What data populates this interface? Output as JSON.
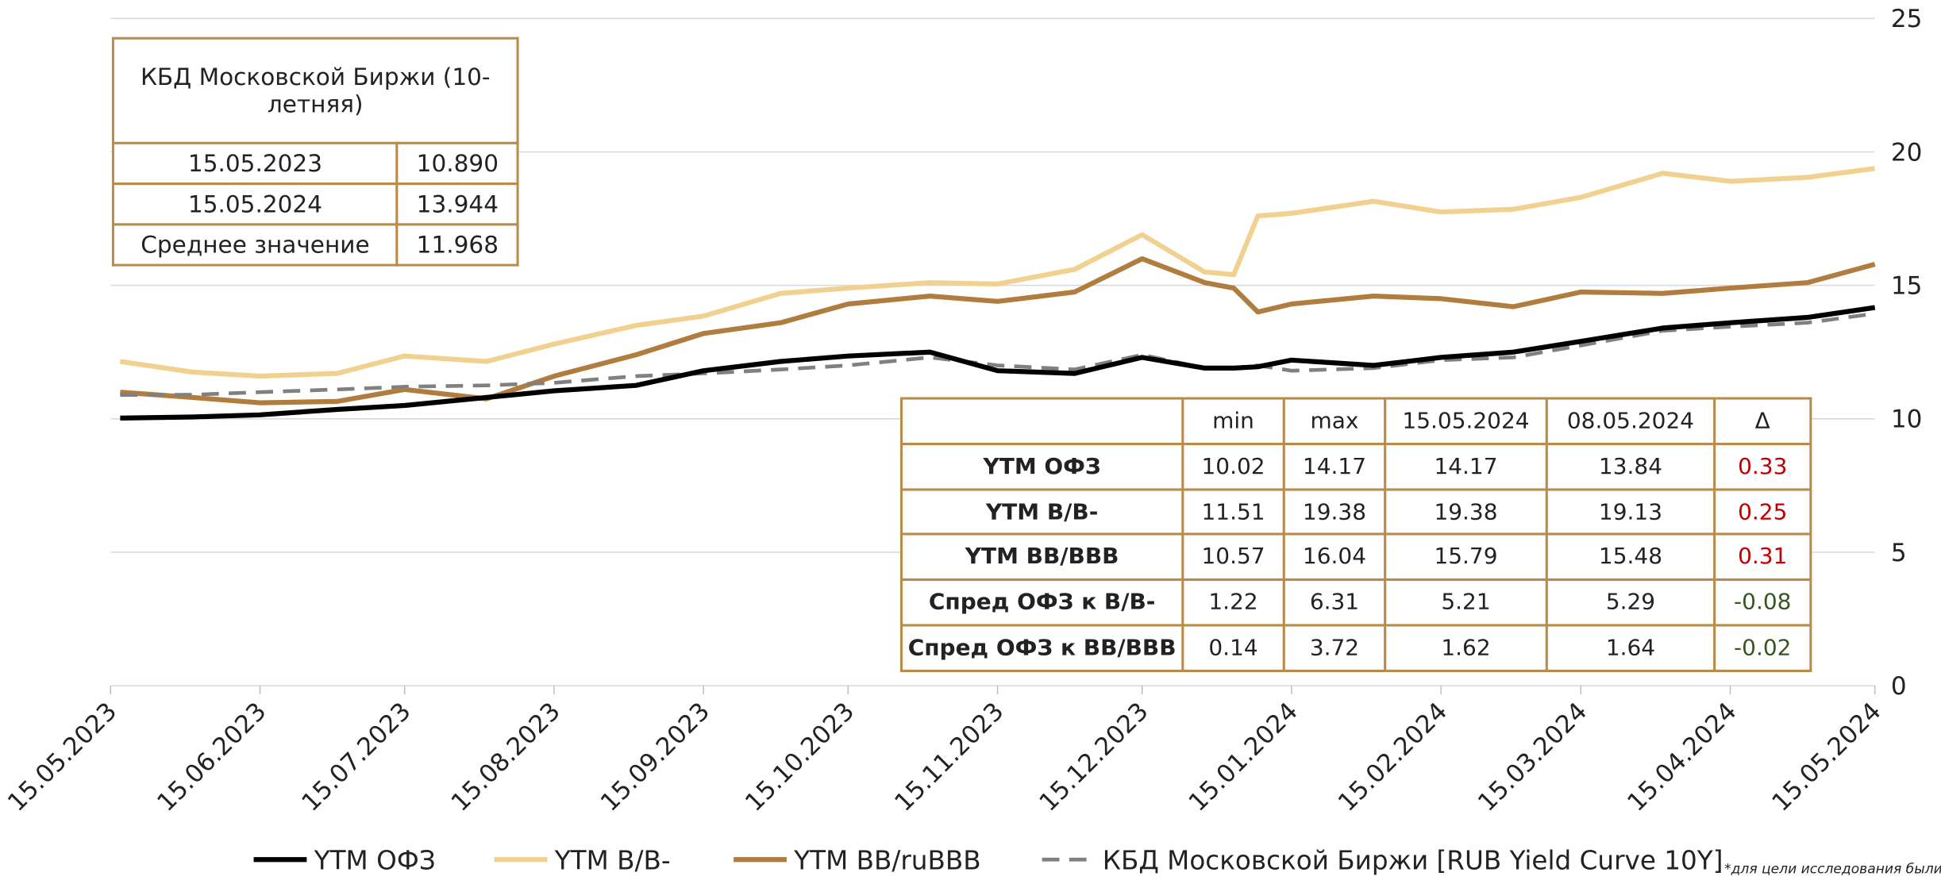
{
  "chart_data": {
    "type": "line",
    "x": [
      "17.05.2023",
      "01.06.2023",
      "15.06.2023",
      "01.07.2023",
      "15.07.2023",
      "01.08.2023",
      "15.08.2023",
      "01.09.2023",
      "15.09.2023",
      "01.10.2023",
      "15.10.2023",
      "01.11.2023",
      "15.11.2023",
      "01.12.2023",
      "15.12.2023",
      "28.12.2023",
      "03.01.2024",
      "08.01.2024",
      "15.01.2024",
      "01.02.2024",
      "15.02.2024",
      "01.03.2024",
      "15.03.2024",
      "01.04.2024",
      "15.04.2024",
      "01.05.2024",
      "15.05.2024"
    ],
    "series": [
      {
        "name": "YTM ОФЗ",
        "color": "#000000",
        "values": [
          10.03,
          10.07,
          10.15,
          10.35,
          10.5,
          10.8,
          11.05,
          11.25,
          11.8,
          12.15,
          12.35,
          12.5,
          11.8,
          11.7,
          12.3,
          11.9,
          11.9,
          11.95,
          12.2,
          12.0,
          12.3,
          12.5,
          12.9,
          13.4,
          13.6,
          13.8,
          14.17
        ]
      },
      {
        "name": "YTM B/B-",
        "color": "#f0d18f",
        "values": [
          12.15,
          11.75,
          11.6,
          11.7,
          12.35,
          12.15,
          12.8,
          13.5,
          13.85,
          14.7,
          14.9,
          15.1,
          15.05,
          15.6,
          16.9,
          15.5,
          15.4,
          17.6,
          17.7,
          18.15,
          17.75,
          17.85,
          18.3,
          19.2,
          18.9,
          19.05,
          19.38
        ]
      },
      {
        "name": "YTM BB/ruBBB",
        "color": "#b07d3e",
        "values": [
          11.0,
          10.8,
          10.6,
          10.65,
          11.1,
          10.75,
          11.6,
          12.4,
          13.2,
          13.6,
          14.3,
          14.6,
          14.4,
          14.75,
          16.0,
          15.1,
          14.9,
          14.0,
          14.3,
          14.6,
          14.5,
          14.2,
          14.75,
          14.7,
          14.9,
          15.1,
          15.79
        ]
      },
      {
        "name": "КБД Московской Биржи [RUB Yield Curve 10Y]",
        "color": "#808080",
        "dashed": true,
        "values": [
          10.89,
          10.9,
          11.0,
          11.1,
          11.2,
          11.25,
          11.35,
          11.6,
          11.7,
          11.85,
          12.0,
          12.3,
          12.0,
          11.85,
          12.4,
          11.9,
          11.9,
          12.0,
          11.8,
          11.9,
          12.2,
          12.3,
          12.75,
          13.3,
          13.45,
          13.6,
          13.94
        ]
      }
    ],
    "xlim": [
      "15.05.2023",
      "15.05.2024"
    ],
    "xticks": [
      "15.05.2023",
      "15.06.2023",
      "15.07.2023",
      "15.08.2023",
      "15.09.2023",
      "15.10.2023",
      "15.11.2023",
      "15.12.2023",
      "15.01.2024",
      "15.02.2024",
      "15.03.2024",
      "15.04.2024",
      "15.05.2024"
    ],
    "ylim": [
      0,
      25
    ],
    "yticks": [
      0,
      5,
      10,
      15,
      20,
      25
    ],
    "grid": true
  },
  "kbd_table": {
    "title": "КБД Московской Биржи (10-летняя)",
    "rows": [
      [
        "15.05.2023",
        "10.890"
      ],
      [
        "15.05.2024",
        "13.944"
      ],
      [
        "Среднее значение",
        "11.968"
      ]
    ]
  },
  "summary_table": {
    "header": [
      "min",
      "max",
      "15.05.2024",
      "08.05.2024",
      "Δ"
    ],
    "rows": [
      [
        "YTM ОФЗ",
        "10.02",
        "14.17",
        "14.17",
        "13.84",
        "0.33"
      ],
      [
        "YTM B/B-",
        "11.51",
        "19.38",
        "19.38",
        "19.13",
        "0.25"
      ],
      [
        "YTM BB/BBB",
        "10.57",
        "16.04",
        "15.79",
        "15.48",
        "0.31"
      ],
      [
        "Спред ОФЗ к B/B-",
        "1.22",
        "6.31",
        "5.21",
        "5.29",
        "-0.08"
      ],
      [
        "Спред ОФЗ к BB/BBB",
        "0.14",
        "3.72",
        "1.62",
        "1.64",
        "-0.02"
      ]
    ]
  },
  "footnote": "*для цели исследования были"
}
